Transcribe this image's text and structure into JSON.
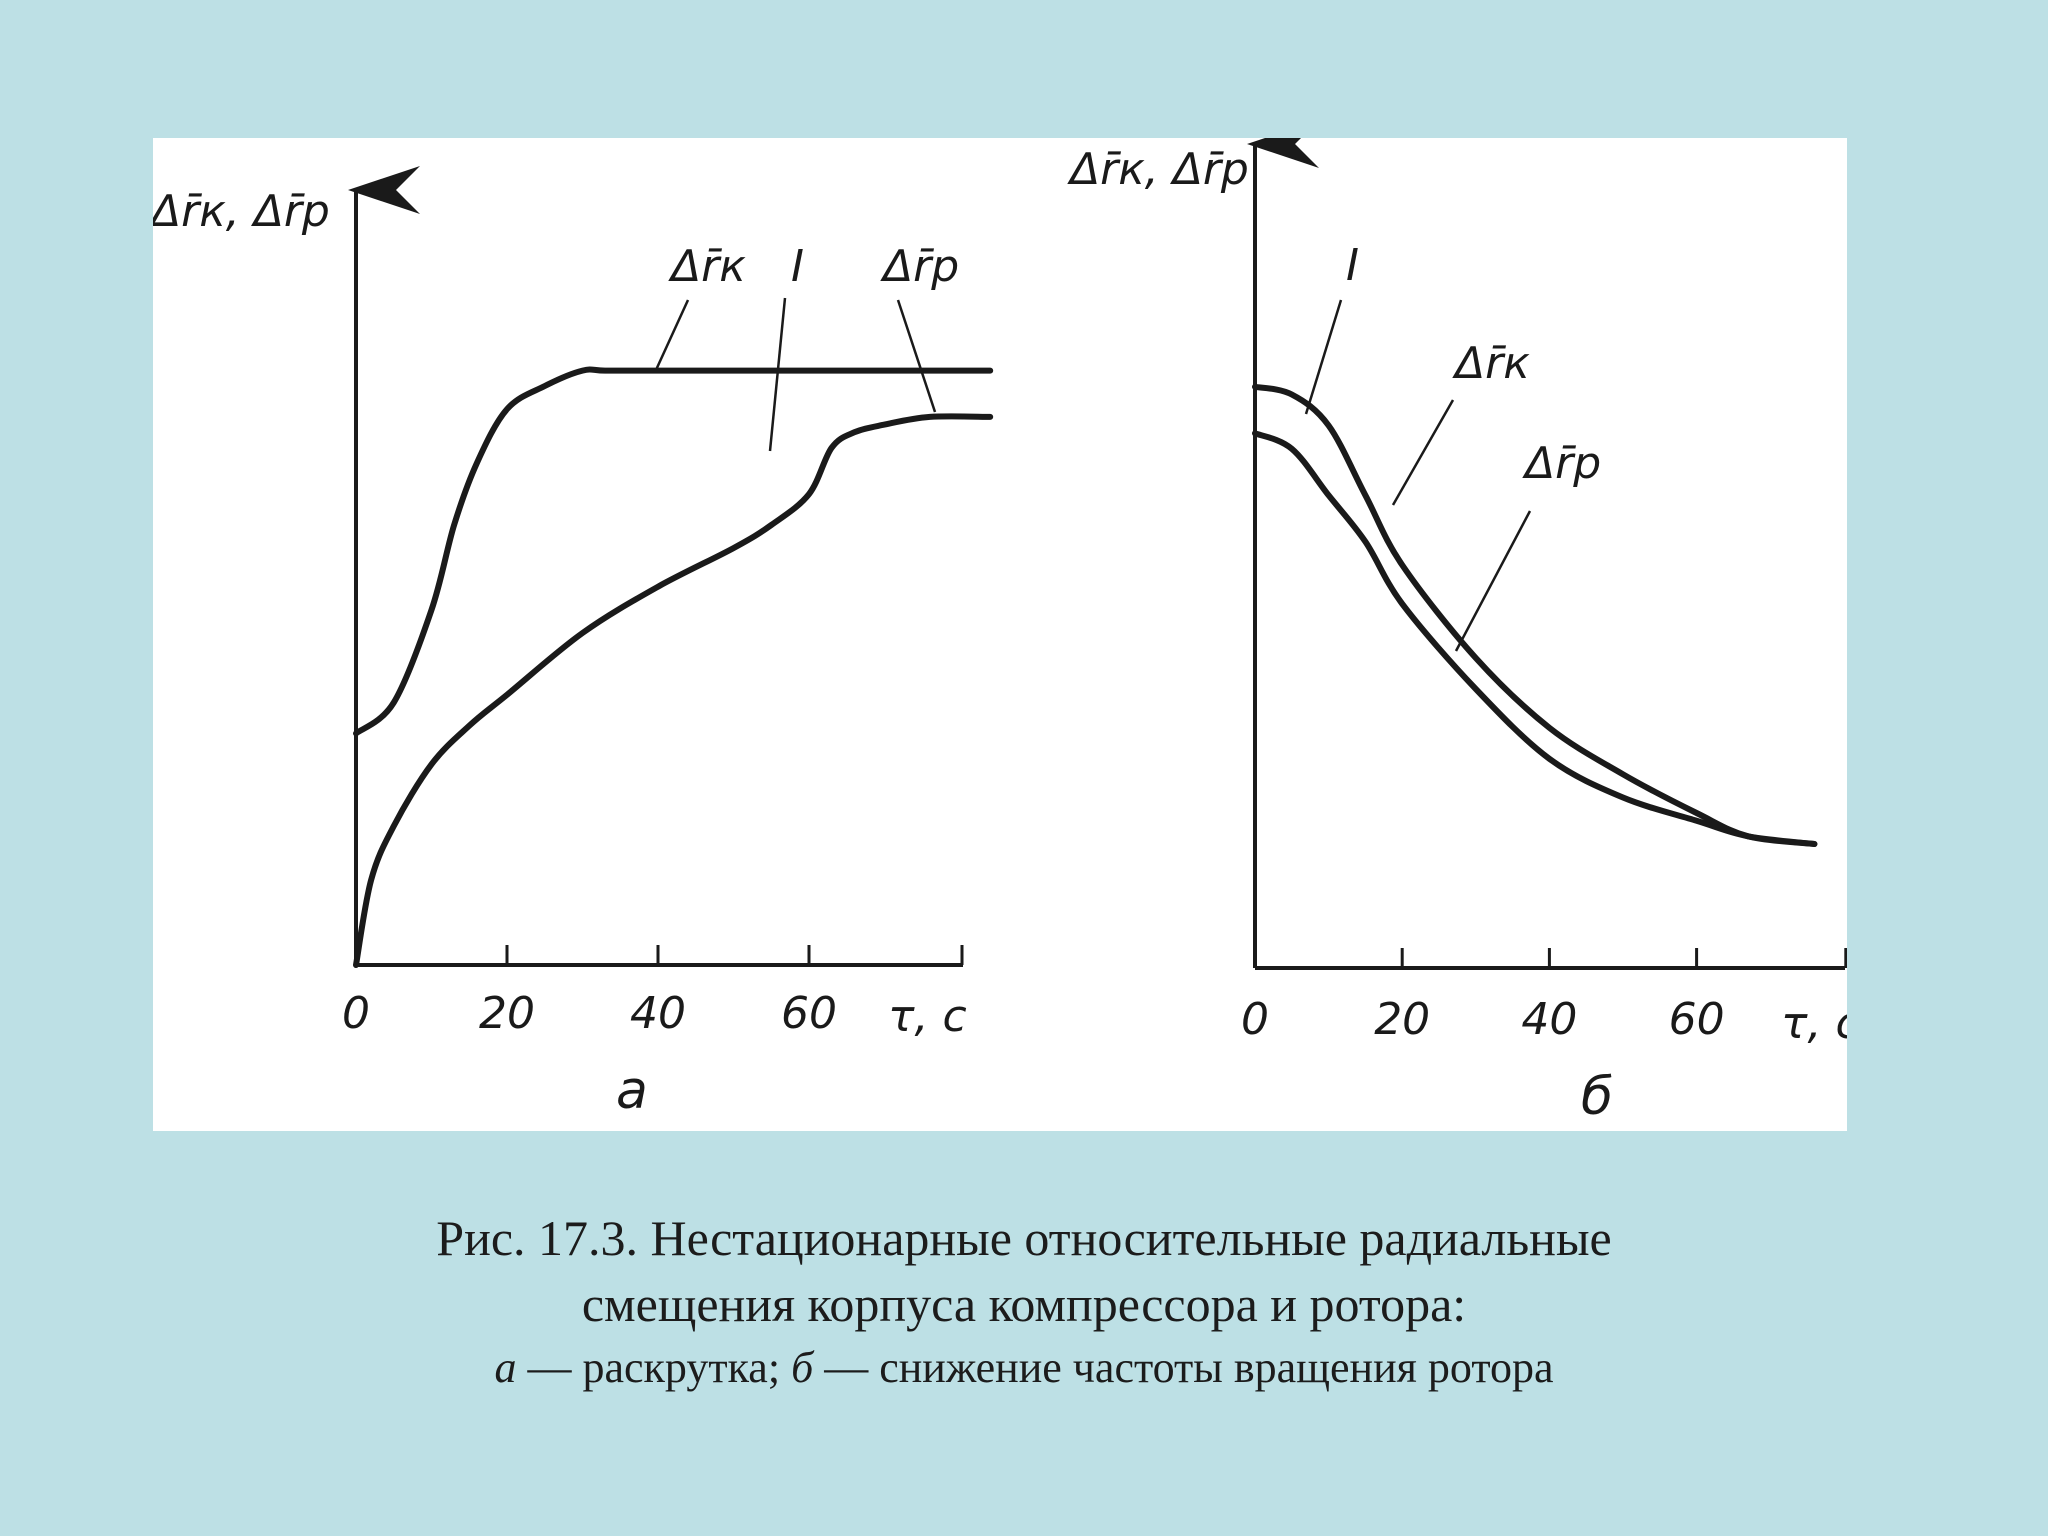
{
  "colors": {
    "background": "#bde0e5",
    "panel": "#ffffff",
    "ink": "#1a1a1a"
  },
  "chart_data": [
    {
      "type": "line",
      "panel_label": "а",
      "ylabel": "Δr̄к, Δr̄р",
      "xlabel": "τ, с",
      "xlim": [
        0,
        80
      ],
      "ylim": [
        0,
        1
      ],
      "x_ticks": [
        "0",
        "20",
        "40",
        "60"
      ],
      "annotations": [
        "Δr̄к",
        "I",
        "Δr̄р"
      ],
      "series": [
        {
          "name": "Δr̄к",
          "x": [
            0,
            5,
            10,
            13,
            16,
            20,
            25,
            30,
            33,
            40,
            50,
            60,
            70,
            84
          ],
          "y": [
            0.3,
            0.34,
            0.46,
            0.57,
            0.65,
            0.72,
            0.75,
            0.77,
            0.77,
            0.77,
            0.77,
            0.77,
            0.77,
            0.77
          ]
        },
        {
          "name": "Δr̄р",
          "x": [
            0,
            2,
            5,
            10,
            15,
            20,
            30,
            40,
            50,
            55,
            60,
            63,
            66,
            70,
            76,
            84
          ],
          "y": [
            0.0,
            0.11,
            0.18,
            0.26,
            0.31,
            0.35,
            0.43,
            0.49,
            0.54,
            0.57,
            0.61,
            0.67,
            0.69,
            0.7,
            0.71,
            0.71
          ]
        }
      ]
    },
    {
      "type": "line",
      "panel_label": "б",
      "ylabel": "Δr̄к, Δr̄р",
      "xlabel": "τ, с",
      "xlim": [
        0,
        80
      ],
      "ylim": [
        0,
        1
      ],
      "x_ticks": [
        "0",
        "20",
        "40",
        "60"
      ],
      "annotations": [
        "I",
        "Δr̄к",
        "Δr̄р"
      ],
      "series": [
        {
          "name": "Δr̄к",
          "x": [
            0,
            5,
            10,
            15,
            20,
            30,
            40,
            50,
            60,
            67,
            76
          ],
          "y": [
            0.75,
            0.74,
            0.7,
            0.61,
            0.52,
            0.4,
            0.31,
            0.25,
            0.2,
            0.17,
            0.16
          ]
        },
        {
          "name": "Δr̄р",
          "x": [
            0,
            5,
            10,
            15,
            20,
            30,
            40,
            50,
            60,
            67,
            76
          ],
          "y": [
            0.69,
            0.67,
            0.61,
            0.55,
            0.47,
            0.36,
            0.27,
            0.22,
            0.19,
            0.17,
            0.16
          ]
        }
      ]
    }
  ],
  "caption": {
    "line1": "Рис. 17.3. Нестационарные относительные радиальные",
    "line2": "смещения корпуса компрессора  и ротора:",
    "line3_a": "а",
    "line3_mid": " — раскрутка; ",
    "line3_b": "б",
    "line3_end": " — снижение частоты вращения ротора"
  }
}
